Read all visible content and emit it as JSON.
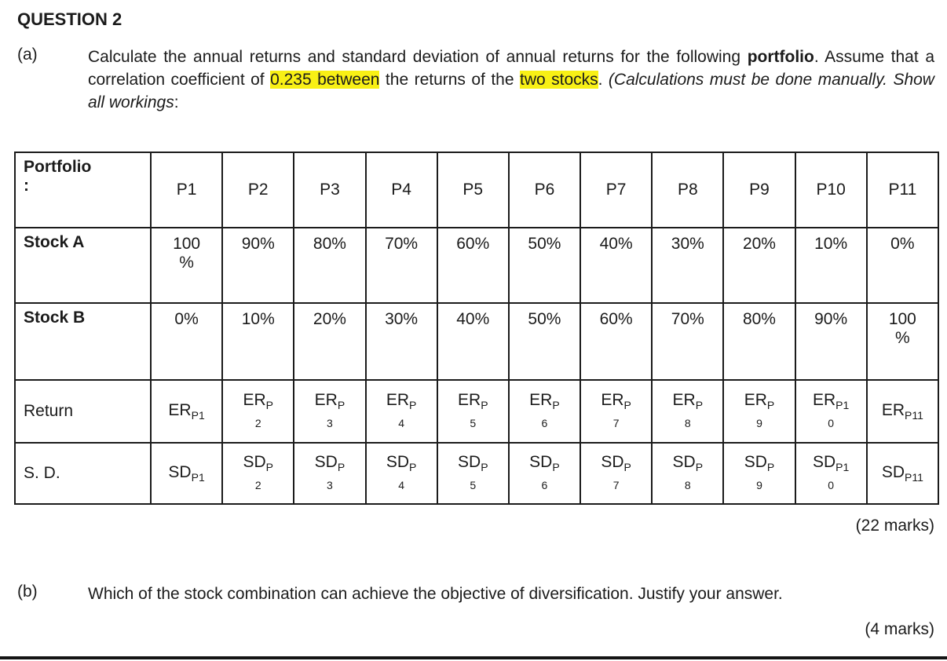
{
  "page": {
    "title": "QUESTION 2",
    "highlight_color": "#f8f015"
  },
  "question_a": {
    "label": "(a)",
    "runs": [
      "Calculate the annual returns and standard deviation of annual returns for the following ",
      "portfolio",
      ". Assume that a correlation coefficient of ",
      "0.235 between",
      " the returns of the ",
      "two stocks",
      ". ",
      "(Calculations must be done manually. Show all workings",
      ":"
    ],
    "marks": "(22 marks)"
  },
  "question_b": {
    "label": "(b)",
    "text": "Which of the stock combination can achieve the objective of diversification. Justify your answer.",
    "marks": "(4 marks)"
  },
  "table": {
    "corner_label": "Portfolio\n:",
    "columns": [
      "P1",
      "P2",
      "P3",
      "P4",
      "P5",
      "P6",
      "P7",
      "P8",
      "P9",
      "P10",
      "P11"
    ],
    "rows": {
      "stock_a": {
        "label": "Stock A",
        "values": [
          "100\n%",
          "90%",
          "80%",
          "70%",
          "60%",
          "50%",
          "40%",
          "30%",
          "20%",
          "10%",
          "0%"
        ]
      },
      "stock_b": {
        "label": "Stock B",
        "values": [
          "0%",
          "10%",
          "20%",
          "30%",
          "40%",
          "50%",
          "60%",
          "70%",
          "80%",
          "90%",
          "100\n%"
        ]
      },
      "ret": {
        "label": "Return",
        "cells": [
          {
            "base": "ER",
            "sub": "P1",
            "sub2": ""
          },
          {
            "base": "ER",
            "sub": "P",
            "sub2": "2"
          },
          {
            "base": "ER",
            "sub": "P",
            "sub2": "3"
          },
          {
            "base": "ER",
            "sub": "P",
            "sub2": "4"
          },
          {
            "base": "ER",
            "sub": "P",
            "sub2": "5"
          },
          {
            "base": "ER",
            "sub": "P",
            "sub2": "6"
          },
          {
            "base": "ER",
            "sub": "P",
            "sub2": "7"
          },
          {
            "base": "ER",
            "sub": "P",
            "sub2": "8"
          },
          {
            "base": "ER",
            "sub": "P",
            "sub2": "9"
          },
          {
            "base": "ER",
            "sub": "P1",
            "sub2": "0"
          },
          {
            "base": "ER",
            "sub": "P11",
            "sub2": ""
          }
        ]
      },
      "sd": {
        "label": "S. D.",
        "cells": [
          {
            "base": "SD",
            "sub": "P1",
            "sub2": ""
          },
          {
            "base": "SD",
            "sub": "P",
            "sub2": "2"
          },
          {
            "base": "SD",
            "sub": "P",
            "sub2": "3"
          },
          {
            "base": "SD",
            "sub": "P",
            "sub2": "4"
          },
          {
            "base": "SD",
            "sub": "P",
            "sub2": "5"
          },
          {
            "base": "SD",
            "sub": "P",
            "sub2": "6"
          },
          {
            "base": "SD",
            "sub": "P",
            "sub2": "7"
          },
          {
            "base": "SD",
            "sub": "P",
            "sub2": "8"
          },
          {
            "base": "SD",
            "sub": "P",
            "sub2": "9"
          },
          {
            "base": "SD",
            "sub": "P1",
            "sub2": "0"
          },
          {
            "base": "SD",
            "sub": "P11",
            "sub2": ""
          }
        ]
      }
    }
  }
}
